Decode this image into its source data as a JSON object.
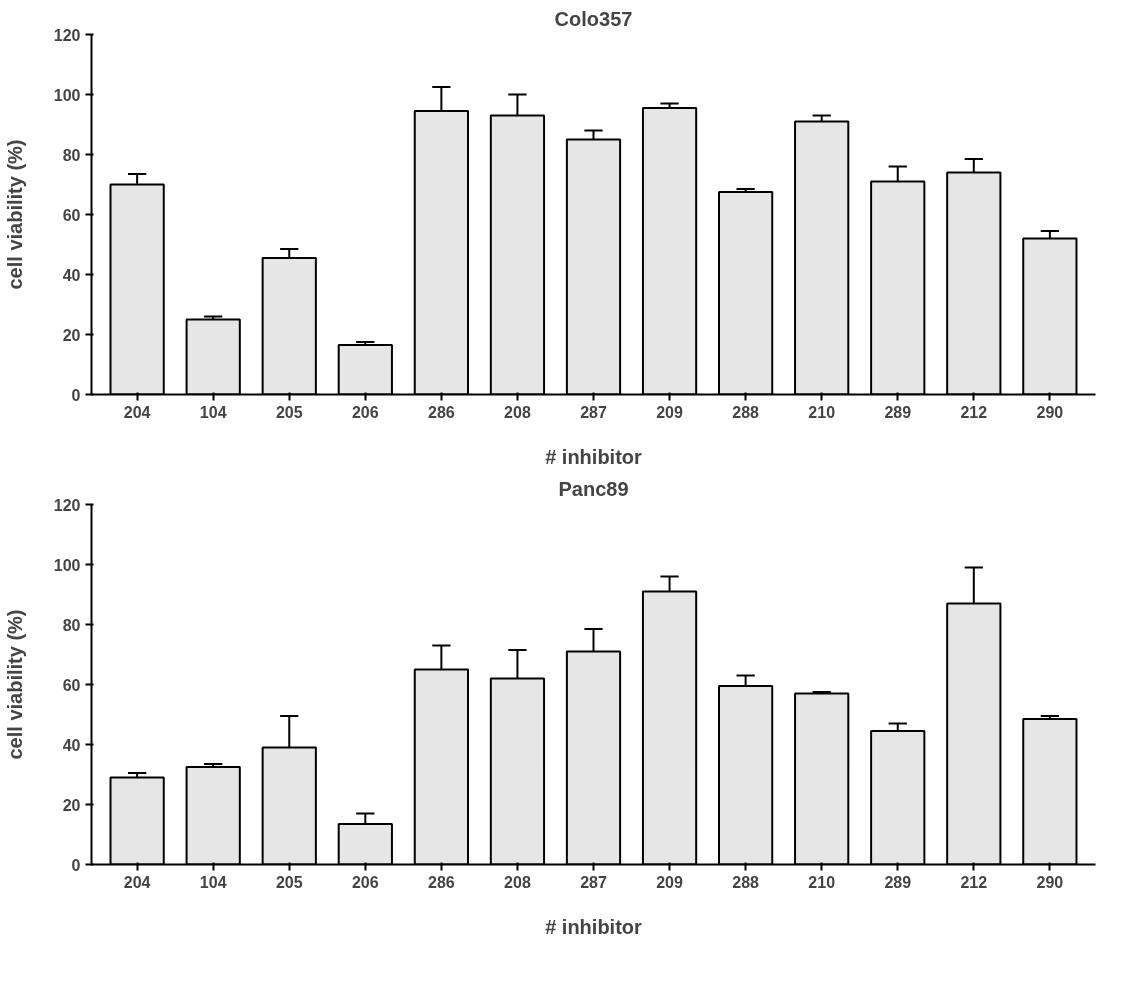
{
  "chart_data": [
    {
      "type": "bar",
      "title": "Colo357",
      "xlabel": "# inhibitor",
      "ylabel": "cell viability (%)",
      "categories": [
        "204",
        "104",
        "205",
        "206",
        "286",
        "208",
        "287",
        "209",
        "288",
        "210",
        "289",
        "212",
        "290"
      ],
      "values": [
        70,
        25,
        45.5,
        16.5,
        94.5,
        93,
        85,
        95.5,
        67.5,
        91,
        71,
        74,
        52
      ],
      "errors": [
        [
          70,
          73.5
        ],
        [
          25,
          26
        ],
        [
          45.5,
          48.5
        ],
        [
          16.5,
          17.5
        ],
        [
          94.5,
          102.5
        ],
        [
          93,
          100
        ],
        [
          85,
          88
        ],
        [
          95.5,
          97
        ],
        [
          67.5,
          68.5
        ],
        [
          91,
          93
        ],
        [
          71,
          76
        ],
        [
          74,
          78.5
        ],
        [
          52,
          54.5
        ]
      ],
      "color": "#e6e6e6",
      "ylim": [
        0,
        120
      ],
      "yticks": [
        0,
        20,
        40,
        60,
        80,
        100,
        120
      ],
      "grid": false
    },
    {
      "type": "bar",
      "title": "Panc89",
      "xlabel": "# inhibitor",
      "ylabel": "cell viability (%)",
      "categories": [
        "204",
        "104",
        "205",
        "206",
        "286",
        "208",
        "287",
        "209",
        "288",
        "210",
        "289",
        "212",
        "290"
      ],
      "values": [
        29,
        32.5,
        39,
        13.5,
        65,
        62,
        71,
        91,
        59.5,
        57,
        44.5,
        87,
        48.5
      ],
      "errors": [
        [
          29,
          30.5
        ],
        [
          32.5,
          33.5
        ],
        [
          39,
          49.5
        ],
        [
          13.5,
          17
        ],
        [
          65,
          73
        ],
        [
          62,
          71.5
        ],
        [
          71,
          78.5
        ],
        [
          91,
          96
        ],
        [
          59.5,
          63
        ],
        [
          57,
          57.5
        ],
        [
          44.5,
          47
        ],
        [
          87,
          99
        ],
        [
          48.5,
          49.5
        ]
      ],
      "color": "#e6e6e6",
      "ylim": [
        0,
        120
      ],
      "yticks": [
        0,
        20,
        40,
        60,
        80,
        100,
        120
      ],
      "grid": false
    }
  ]
}
